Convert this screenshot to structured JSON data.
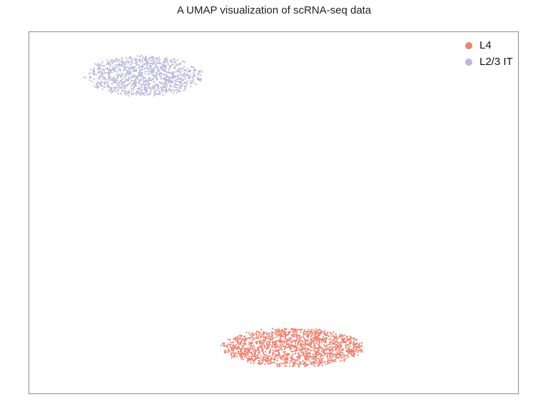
{
  "chart_data": {
    "type": "scatter",
    "title": "A UMAP visualization of scRNA-seq data",
    "xlabel": "",
    "ylabel": "",
    "axes_visible": false,
    "grid": false,
    "legend_position": "top-right",
    "xlim": [
      -10,
      10
    ],
    "ylim": [
      -10,
      10
    ],
    "series": [
      {
        "name": "L4",
        "color": "#F08070",
        "cluster": {
          "center_x": 0.8,
          "center_y": -7.45,
          "spread_x": 2.85,
          "spread_y": 1.05,
          "n_points": 1600
        }
      },
      {
        "name": "L2/3 IT",
        "color": "#BCB8DC",
        "cluster": {
          "center_x": -5.3,
          "center_y": 7.55,
          "spread_x": 2.35,
          "spread_y": 1.1,
          "n_points": 1100
        }
      }
    ]
  }
}
